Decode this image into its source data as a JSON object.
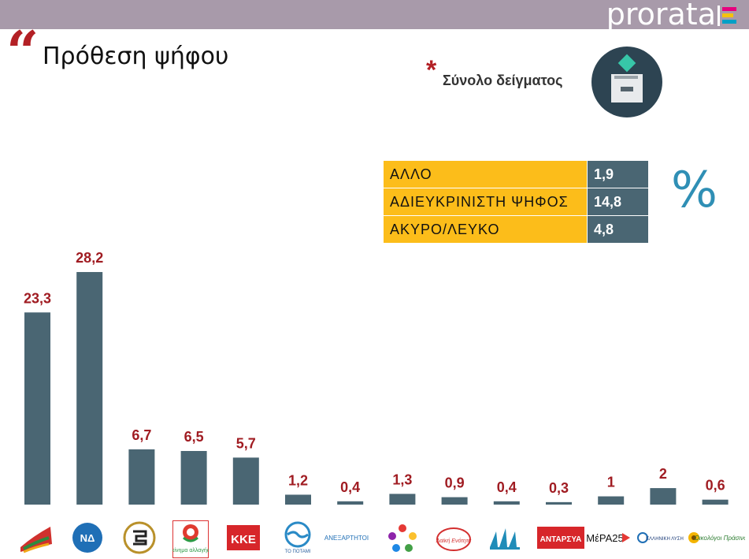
{
  "header": {
    "brand": "prorata"
  },
  "title": "Πρόθεση ψήφου",
  "sample_label": "Σύνολο δείγματος",
  "percent_symbol": "%",
  "info_table": [
    {
      "label": "ΑΛΛΟ",
      "value": "1,9"
    },
    {
      "label": "ΑΔΙΕΥΚΡΙΝΙΣΤΗ ΨΗΦΟΣ",
      "value": "14,8"
    },
    {
      "label": "ΑΚΥΡΟ/ΛΕΥΚΟ",
      "value": "4,8"
    }
  ],
  "colors": {
    "bar": "#4a6673",
    "label": "#a01c22",
    "accent": "#b32025",
    "table_label": "#fcbd1a",
    "table_value": "#4a6673"
  },
  "chart_data": {
    "type": "bar",
    "categories": [
      "ΣΥΡΙΖΑ",
      "ΝΔ",
      "Χρυσή Αυγή",
      "Κίνημα Αλλαγής",
      "ΚΚΕ",
      "Το Ποτάμι",
      "ΑΝΕΛ",
      "Ένωση Κεντρώων",
      "Λαϊκή Ενότητα",
      "Πλεύση Ελευθερίας",
      "ΑΝΤΑΡΣΥΑ",
      "ΜέΡΑ25",
      "Ελληνική Λύση",
      "Οικολόγοι Πράσινοι"
    ],
    "values": [
      23.3,
      28.2,
      6.7,
      6.5,
      5.7,
      1.2,
      0.4,
      1.3,
      0.9,
      0.4,
      0.3,
      1,
      2,
      0.6
    ],
    "value_labels": [
      "23,3",
      "28,2",
      "6,7",
      "6,5",
      "5,7",
      "1,2",
      "0,4",
      "1,3",
      "0,9",
      "0,4",
      "0,3",
      "1",
      "2",
      "0,6"
    ],
    "logo_texts": [
      "",
      "ΝΔ",
      "",
      "κίνημα αλλαγής",
      "ΚΚΕ",
      "ΤΟ ΠΟΤΑΜΙ",
      "ΑΝΕΞΑΡΤΗΤΟΙ",
      "",
      "Λαϊκή Ενότητα",
      "",
      "ΑΝΤΑΡΣΥΑ",
      "ΜέΡΑ25",
      "ΕΛΛΗΝΙΚΗ ΛΥΣΗ",
      "Οικολόγοι Πράσινοι"
    ],
    "ylim": [
      0,
      30
    ]
  }
}
